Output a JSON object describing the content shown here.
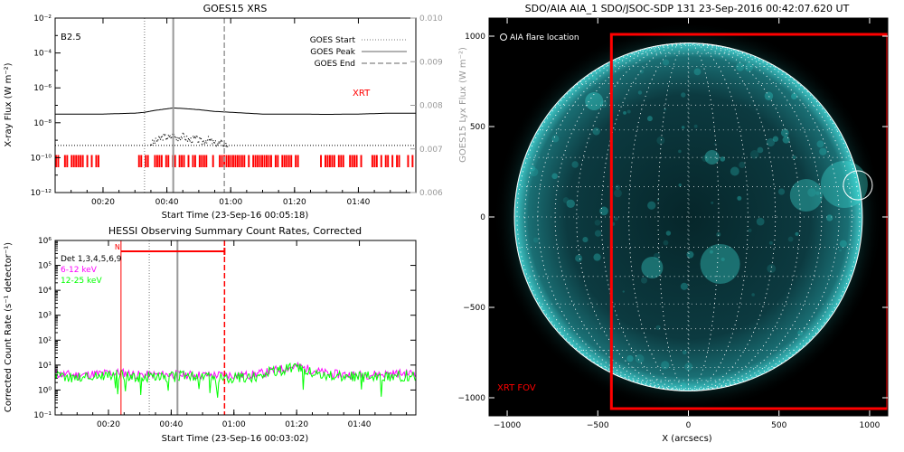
{
  "colors": {
    "red": "#ff0000",
    "magenta": "#ff00ff",
    "green": "#00ff00",
    "gray": "#999999",
    "sun_teal": "#1fb4b4",
    "disk_dark": "#0b2e33"
  },
  "chart_data": [
    {
      "type": "line",
      "title": "GOES15 XRS",
      "xlabel": "Start Time (23-Sep-16 00:05:18)",
      "ylabel": "X-ray Flux (W m⁻²)",
      "y2label": "GOES15 Lyx Flux (W m⁻²)",
      "class_label": "B2.5",
      "xrt_label": "XRT",
      "x_unit": "minutes since 00:00 UT",
      "xlim": [
        5,
        118
      ],
      "ylim_log10": [
        -12,
        -2
      ],
      "y2lim": [
        0.006,
        0.01
      ],
      "x_ticks": [
        {
          "v": 20,
          "label": "00:20"
        },
        {
          "v": 40,
          "label": "00:40"
        },
        {
          "v": 60,
          "label": "01:00"
        },
        {
          "v": 80,
          "label": "01:20"
        },
        {
          "v": 100,
          "label": "01:40"
        }
      ],
      "y_ticks": [
        {
          "v": -12,
          "label": "10⁻¹²"
        },
        {
          "v": -10,
          "label": "10⁻¹⁰"
        },
        {
          "v": -8,
          "label": "10⁻⁸"
        },
        {
          "v": -6,
          "label": "10⁻⁶"
        },
        {
          "v": -4,
          "label": "10⁻⁴"
        },
        {
          "v": -2,
          "label": "10⁻²"
        }
      ],
      "y2_ticks": [
        {
          "v": 0.006,
          "label": "0.006"
        },
        {
          "v": 0.007,
          "label": "0.007"
        },
        {
          "v": 0.008,
          "label": "0.008"
        },
        {
          "v": 0.009,
          "label": "0.009"
        },
        {
          "v": 0.01,
          "label": "0.010"
        }
      ],
      "legend": [
        {
          "label": "GOES Start",
          "style": "dotted"
        },
        {
          "label": "GOES Peak",
          "style": "solid"
        },
        {
          "label": "GOES End",
          "style": "dashed"
        }
      ],
      "legend_position": "top-right",
      "markers": {
        "start": 33,
        "peak": 42,
        "end": 58
      },
      "series": [
        {
          "name": "long",
          "color": "#000000",
          "x": [
            5,
            10,
            20,
            30,
            33,
            36,
            40,
            42,
            45,
            50,
            55,
            60,
            65,
            70,
            80,
            90,
            100,
            110,
            118
          ],
          "log_y": [
            -7.5,
            -7.5,
            -7.5,
            -7.45,
            -7.4,
            -7.3,
            -7.2,
            -7.15,
            -7.18,
            -7.25,
            -7.35,
            -7.4,
            -7.45,
            -7.5,
            -7.5,
            -7.52,
            -7.5,
            -7.45,
            -7.45
          ]
        },
        {
          "name": "short",
          "color": "#000000",
          "style": "dotted",
          "x": [
            35,
            37,
            39,
            41,
            42,
            43,
            45,
            47,
            49,
            51,
            53,
            55,
            57,
            59
          ],
          "log_y": [
            -9.2,
            -9.0,
            -8.8,
            -8.85,
            -8.7,
            -8.9,
            -8.75,
            -9.0,
            -8.9,
            -9.1,
            -8.95,
            -9.2,
            -9.15,
            -9.3
          ]
        },
        {
          "name": "background",
          "color": "#000000",
          "style": "dotted",
          "x": [
            5,
            118
          ],
          "log_y": [
            -9.3,
            -9.3
          ]
        }
      ],
      "xrt_intervals": [
        [
          5,
          20
        ],
        [
          31,
          35
        ],
        [
          36,
          81
        ],
        [
          88,
          118
        ]
      ]
    },
    {
      "type": "line",
      "title": "HESSI Observing Summary Count Rates, Corrected",
      "xlabel": "Start Time (23-Sep-16 00:03:02)",
      "ylabel": "Corrected Count Rate (s⁻¹ detector⁻¹)",
      "x_unit": "minutes since 00:00 UT",
      "xlim": [
        3,
        118
      ],
      "ylim_log10": [
        -1,
        6
      ],
      "x_ticks": [
        {
          "v": 20,
          "label": "00:20"
        },
        {
          "v": 40,
          "label": "00:40"
        },
        {
          "v": 60,
          "label": "01:00"
        },
        {
          "v": 80,
          "label": "01:20"
        },
        {
          "v": 100,
          "label": "01:40"
        }
      ],
      "y_ticks": [
        {
          "v": -1,
          "label": "10⁻¹"
        },
        {
          "v": 0,
          "label": "10⁰"
        },
        {
          "v": 1,
          "label": "10¹"
        },
        {
          "v": 2,
          "label": "10²"
        },
        {
          "v": 3,
          "label": "10³"
        },
        {
          "v": 4,
          "label": "10⁴"
        },
        {
          "v": 5,
          "label": "10⁵"
        },
        {
          "v": 6,
          "label": "10⁶"
        }
      ],
      "legend": [
        {
          "label": "Det 1,3,4,5,6,9",
          "color": "#000000"
        },
        {
          "label": "6-12 keV",
          "color": "#ff00ff"
        },
        {
          "label": "12-25 keV",
          "color": "#00ff00"
        }
      ],
      "legend_position": "top-left",
      "night_label": "N",
      "night_interval": [
        24,
        57
      ],
      "markers": {
        "start": 33,
        "peak": 42,
        "end": 57
      },
      "series": [
        {
          "name": "6-12 keV",
          "color": "#ff00ff",
          "x": [
            3,
            10,
            20,
            24,
            30,
            40,
            50,
            60,
            65,
            70,
            75,
            80,
            85,
            90,
            100,
            110,
            118
          ],
          "log_y": [
            0.65,
            0.6,
            0.68,
            0.7,
            0.6,
            0.62,
            0.6,
            0.6,
            0.6,
            0.7,
            0.85,
            0.95,
            0.8,
            0.65,
            0.6,
            0.65,
            0.68
          ]
        },
        {
          "name": "12-25 keV",
          "color": "#00ff00",
          "x": [
            3,
            10,
            20,
            24,
            30,
            40,
            50,
            60,
            65,
            70,
            75,
            80,
            85,
            90,
            100,
            110,
            118
          ],
          "log_y": [
            0.55,
            0.5,
            0.6,
            0.62,
            0.5,
            0.55,
            0.52,
            0.5,
            0.5,
            0.65,
            0.8,
            0.9,
            0.75,
            0.58,
            0.52,
            0.55,
            0.6
          ]
        }
      ]
    },
    {
      "type": "image",
      "title": "SDO/AIA AIA_1 SDO/JSOC-SDP 131 23-Sep-2016 00:42:07.620 UT",
      "xlabel": "X (arcsecs)",
      "xlim": [
        -1100,
        1100
      ],
      "ylim": [
        -1100,
        1100
      ],
      "x_ticks": [
        {
          "v": -1000,
          "label": "−1000"
        },
        {
          "v": -500,
          "label": "−500"
        },
        {
          "v": 0,
          "label": "0"
        },
        {
          "v": 500,
          "label": "500"
        },
        {
          "v": 1000,
          "label": "1000"
        }
      ],
      "y_ticks": [
        {
          "v": -1000,
          "label": "−1000"
        },
        {
          "v": -500,
          "label": "−500"
        },
        {
          "v": 0,
          "label": "0"
        },
        {
          "v": 500,
          "label": "500"
        },
        {
          "v": 1000,
          "label": "1000"
        }
      ],
      "legend": [
        {
          "label": "AIA flare location"
        }
      ],
      "legend_position": "top-left",
      "disk_radius_arcsec": 960,
      "grid_spacing_deg": 10,
      "flare_location_arcsec": {
        "x": 935,
        "y": 175,
        "r": 80
      },
      "xrt_fov_label": "XRT FOV",
      "xrt_fov_arcsec": {
        "x0": -425,
        "x1": 1100,
        "y0": -1060,
        "y1": 1010
      }
    }
  ]
}
